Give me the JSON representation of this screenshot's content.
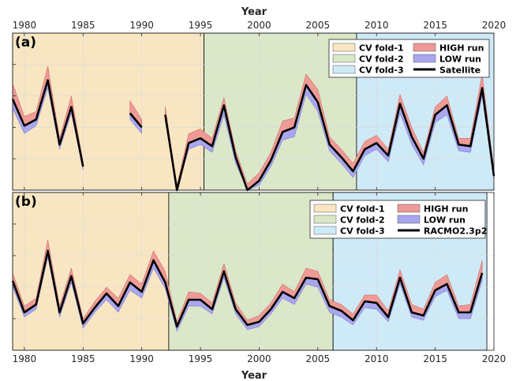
{
  "x_axis_label": "Year",
  "colors": {
    "fold1": "#f8e6c3",
    "fold2": "#dbe7c9",
    "fold3": "#cfeaf7",
    "high": "#ee9a96",
    "low": "#a9a6ee",
    "line": "#000000",
    "grid": "#d9d9d9"
  },
  "chart_data": [
    {
      "type": "area",
      "panel_label": "(a)",
      "xlabel": "Year",
      "xlim": [
        1979,
        2020
      ],
      "ylim": [
        0,
        10
      ],
      "x_ticks": [
        1980,
        1985,
        1990,
        1995,
        2000,
        2005,
        2010,
        2015,
        2020
      ],
      "y_grid": [
        2,
        4,
        6,
        8
      ],
      "grid": true,
      "legend_placement": "top-right",
      "cv_folds": [
        {
          "name": "CV fold-1",
          "start": 1979,
          "end": 1995.3
        },
        {
          "name": "CV fold-2",
          "start": 1995.3,
          "end": 2008.3
        },
        {
          "name": "CV fold-3",
          "start": 2008.3,
          "end": 2020
        }
      ],
      "series": [
        {
          "name": "HIGH run",
          "kind": "band-upper"
        },
        {
          "name": "LOW run",
          "kind": "band-lower"
        },
        {
          "name": "Satellite",
          "kind": "line"
        }
      ],
      "segments": [
        {
          "x": [
            1979,
            1980,
            1981,
            1982,
            1983,
            1984,
            1985
          ],
          "y": [
            5.8,
            4.1,
            4.5,
            7.0,
            2.9,
            5.3,
            1.5
          ],
          "high": [
            6.8,
            4.7,
            5.0,
            7.9,
            3.3,
            6.0,
            1.8
          ],
          "low": [
            5.2,
            3.6,
            4.1,
            6.5,
            2.6,
            4.9,
            1.3
          ]
        },
        {
          "x": [
            1989,
            1990
          ],
          "y": [
            4.9,
            4.0
          ],
          "high": [
            5.7,
            4.5
          ],
          "low": [
            4.5,
            3.6
          ]
        },
        {
          "x": [
            1992,
            1993,
            1994,
            1995,
            1996,
            1997,
            1998,
            1999,
            2000,
            2001,
            2002,
            2003,
            2004,
            2005,
            2006,
            2007,
            2008,
            2009,
            2010,
            2011,
            2012,
            2013,
            2014,
            2015,
            2016,
            2017,
            2018,
            2019,
            2020
          ],
          "y": [
            4.8,
            0.0,
            3.0,
            3.3,
            2.8,
            5.4,
            2.1,
            0.0,
            0.6,
            1.9,
            3.7,
            4.0,
            6.7,
            5.6,
            2.9,
            2.1,
            1.2,
            2.6,
            3.0,
            2.2,
            5.5,
            3.4,
            2.0,
            4.8,
            5.4,
            2.9,
            2.8,
            6.5,
            0.9
          ],
          "high": [
            5.3,
            0.3,
            3.6,
            3.9,
            3.3,
            5.9,
            2.5,
            0.4,
            1.1,
            2.4,
            4.4,
            4.6,
            7.4,
            6.4,
            3.4,
            2.6,
            1.7,
            3.1,
            3.5,
            2.6,
            6.1,
            4.0,
            2.4,
            5.3,
            6.0,
            3.3,
            3.3,
            7.4,
            1.3
          ],
          "low": [
            4.4,
            0.0,
            2.6,
            2.9,
            2.4,
            4.8,
            1.7,
            0.0,
            0.3,
            1.5,
            3.2,
            3.4,
            6.1,
            5.0,
            2.5,
            1.7,
            0.8,
            2.2,
            2.6,
            1.8,
            4.9,
            2.9,
            1.6,
            4.3,
            4.8,
            2.5,
            2.4,
            6.0,
            0.6
          ]
        }
      ]
    },
    {
      "type": "area",
      "panel_label": "(b)",
      "xlabel": "Year",
      "xlim": [
        1979,
        2020
      ],
      "ylim": [
        0,
        10
      ],
      "x_ticks": [
        1980,
        1985,
        1990,
        1995,
        2000,
        2005,
        2010,
        2015,
        2020
      ],
      "y_grid": [
        2,
        4,
        6,
        8
      ],
      "grid": true,
      "legend_placement": "top-right",
      "cv_folds": [
        {
          "name": "CV fold-1",
          "start": 1979,
          "end": 1992.3
        },
        {
          "name": "CV fold-2",
          "start": 1992.3,
          "end": 2006.3
        },
        {
          "name": "CV fold-3",
          "start": 2006.3,
          "end": 2019.4
        }
      ],
      "series": [
        {
          "name": "HIGH run",
          "kind": "band-upper"
        },
        {
          "name": "LOW run",
          "kind": "band-lower"
        },
        {
          "name": "RACMO2.3p2",
          "kind": "line"
        }
      ],
      "segments": [
        {
          "x": [
            1979,
            1980,
            1981,
            1982,
            1983,
            1984,
            1985,
            1986,
            1987,
            1988,
            1989,
            1990,
            1991,
            1992,
            1993,
            1994,
            1995,
            1996,
            1997,
            1998,
            1999,
            2000,
            2001,
            2002,
            2003,
            2004,
            2005,
            2006,
            2007,
            2008,
            2009,
            2010,
            2011,
            2012,
            2013,
            2014,
            2015,
            2016,
            2017,
            2018,
            2019
          ],
          "y": [
            4.4,
            2.4,
            2.9,
            6.3,
            2.4,
            4.7,
            1.7,
            2.7,
            3.6,
            2.8,
            4.3,
            3.7,
            5.7,
            4.3,
            1.5,
            3.2,
            3.2,
            2.6,
            5.0,
            2.6,
            1.6,
            1.8,
            2.6,
            3.7,
            3.3,
            4.6,
            4.5,
            2.8,
            2.5,
            1.9,
            3.1,
            3.0,
            2.1,
            4.6,
            2.4,
            2.2,
            3.8,
            4.2,
            2.4,
            2.4,
            4.9
          ],
          "high": [
            4.9,
            2.8,
            3.3,
            7.0,
            2.8,
            5.2,
            2.0,
            3.1,
            4.0,
            3.3,
            4.8,
            4.2,
            6.3,
            5.0,
            1.8,
            3.7,
            3.6,
            3.0,
            5.5,
            3.0,
            1.9,
            2.2,
            3.0,
            4.2,
            3.7,
            5.2,
            5.0,
            3.2,
            2.9,
            2.3,
            3.5,
            3.5,
            2.5,
            5.1,
            2.9,
            2.6,
            4.3,
            4.8,
            2.8,
            2.9,
            5.7
          ],
          "low": [
            4.0,
            2.1,
            2.6,
            5.9,
            2.1,
            4.3,
            1.4,
            2.4,
            3.2,
            2.4,
            3.8,
            3.3,
            5.2,
            3.9,
            1.2,
            2.8,
            2.8,
            2.3,
            4.6,
            2.3,
            1.3,
            1.5,
            2.3,
            3.3,
            2.9,
            4.2,
            4.0,
            2.4,
            2.1,
            1.6,
            2.7,
            2.6,
            1.8,
            4.2,
            2.1,
            1.9,
            3.4,
            3.8,
            2.0,
            2.0,
            4.4
          ]
        }
      ]
    }
  ]
}
